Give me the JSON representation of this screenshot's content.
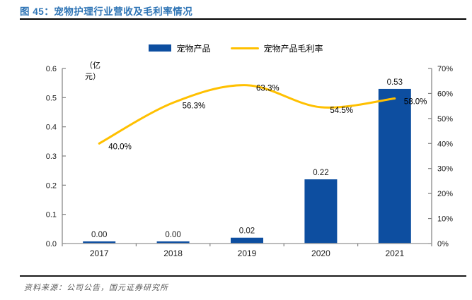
{
  "figure": {
    "title": "图 45：宠物护理行业营收及毛利率情况",
    "source": "资料来源：公司公告，国元证券研究所"
  },
  "colors": {
    "title": "#2E74B5",
    "bar": "#0D4EA0",
    "line": "#FFC000",
    "axis": "#808080",
    "tick_text": "#1a1a1a",
    "source_text": "#595959"
  },
  "chart_data": {
    "type": "bar",
    "subtype": "bar-line-combo",
    "categories": [
      "2017",
      "2018",
      "2019",
      "2020",
      "2021"
    ],
    "series": [
      {
        "name": "宠物产品",
        "type": "bar",
        "axis": "left",
        "color": "#0D4EA0",
        "values": [
          0.0,
          0.0,
          0.02,
          0.22,
          0.53
        ],
        "labels": [
          "0.00",
          "0.00",
          "0.02",
          "0.22",
          "0.53"
        ]
      },
      {
        "name": "宠物产品毛利率",
        "type": "line",
        "axis": "right",
        "color": "#FFC000",
        "values": [
          40.0,
          56.3,
          63.3,
          54.5,
          58.0
        ],
        "labels": [
          "40.0%",
          "56.3%",
          "63.3%",
          "54.5%",
          "58.0%"
        ]
      }
    ],
    "left_axis": {
      "title": "（亿元）",
      "min": 0,
      "max": 0.6,
      "step": 0.1,
      "tick_labels": [
        "0.0",
        "0.1",
        "0.2",
        "0.3",
        "0.4",
        "0.5",
        "0.6"
      ]
    },
    "right_axis": {
      "min": 0,
      "max": 70,
      "step": 10,
      "tick_labels": [
        "0%",
        "10%",
        "20%",
        "30%",
        "40%",
        "50%",
        "60%",
        "70%"
      ]
    },
    "legend_position": "top",
    "grid": false
  }
}
